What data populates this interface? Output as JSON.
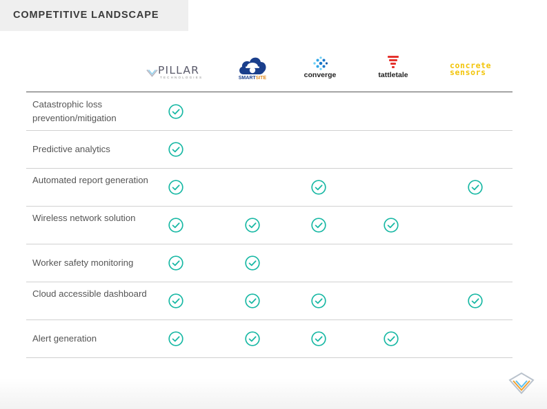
{
  "header": {
    "title": "COMPETITIVE LANDSCAPE"
  },
  "colors": {
    "check": "#18b8a4",
    "accent_yellow": "#f2c40a",
    "smartsite_blue": "#1a3f8c",
    "tattletale_red": "#e5322d"
  },
  "competitors": [
    {
      "name": "PILLAR",
      "subtitle": "TECHNOLOGIES",
      "icon": "pillar-diamond-icon"
    },
    {
      "name_prefix": "SMART",
      "name_suffix": "SITE",
      "icon": "cloud-worker-icon"
    },
    {
      "name": "converge",
      "icon": "converge-dots-icon"
    },
    {
      "name": "tattletale",
      "icon": "tattletale-bars-icon"
    },
    {
      "name_line1": "concrete",
      "name_line2": "sensors"
    }
  ],
  "features": [
    {
      "label": "Catastrophic loss prevention/mitigation",
      "checks": [
        true,
        false,
        false,
        false,
        false
      ]
    },
    {
      "label": "Predictive analytics",
      "checks": [
        true,
        false,
        false,
        false,
        false
      ]
    },
    {
      "label": "Automated report generation",
      "checks": [
        true,
        false,
        true,
        false,
        true
      ]
    },
    {
      "label": "Wireless network solution",
      "checks": [
        true,
        true,
        true,
        true,
        false
      ]
    },
    {
      "label": "Worker safety monitoring",
      "checks": [
        true,
        true,
        false,
        false,
        false
      ]
    },
    {
      "label": "Cloud accessible dashboard",
      "checks": [
        true,
        true,
        true,
        false,
        true
      ]
    },
    {
      "label": "Alert generation",
      "checks": [
        true,
        true,
        true,
        true,
        false
      ]
    }
  ],
  "check_icon": "check-circle-icon",
  "footer_icon": "pillar-diamond-icon"
}
